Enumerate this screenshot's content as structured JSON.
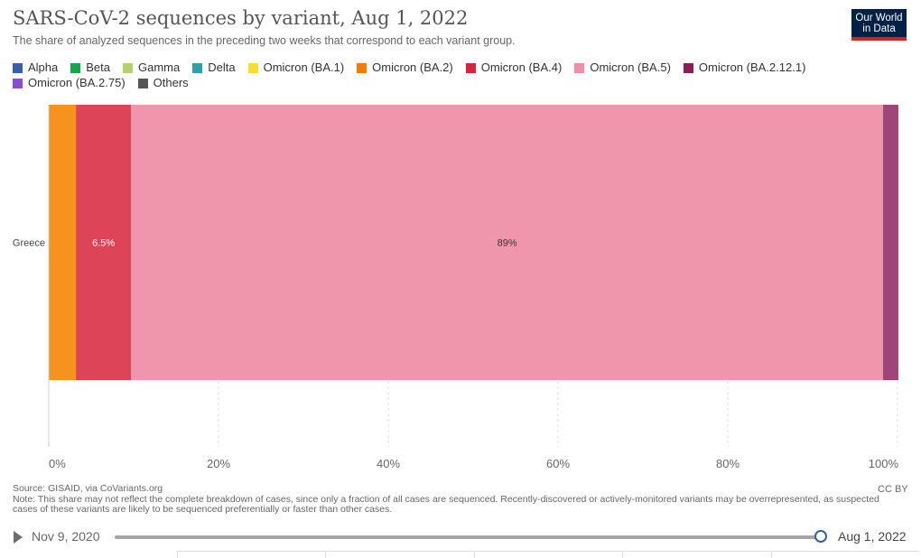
{
  "header": {
    "title": "SARS-CoV-2 sequences by variant, Aug 1, 2022",
    "subtitle": "The share of analyzed sequences in the preceding two weeks that correspond to each variant group.",
    "logo_line1": "Our World",
    "logo_line2": "in Data"
  },
  "legend": [
    {
      "label": "Alpha",
      "color": "#3360a9"
    },
    {
      "label": "Beta",
      "color": "#18a64a"
    },
    {
      "label": "Gamma",
      "color": "#b5d16b"
    },
    {
      "label": "Delta",
      "color": "#2ea0a8"
    },
    {
      "label": "Omicron (BA.1)",
      "color": "#fadb30"
    },
    {
      "label": "Omicron (BA.2)",
      "color": "#f47a00"
    },
    {
      "label": "Omicron (BA.4)",
      "color": "#d7253b"
    },
    {
      "label": "Omicron (BA.5)",
      "color": "#ee8fa3"
    },
    {
      "label": "Omicron (BA.2.12.1)",
      "color": "#8d1d55"
    },
    {
      "label": "Omicron (BA.2.75)",
      "color": "#8e4cd6"
    },
    {
      "label": "Others",
      "color": "#555555"
    }
  ],
  "chart_data": {
    "type": "bar",
    "orientation": "horizontal",
    "stacked": true,
    "categories": [
      "Greece"
    ],
    "series": [
      {
        "name": "Omicron (BA.2)",
        "color": "#f6931f",
        "values": [
          3.2
        ]
      },
      {
        "name": "Omicron (BA.4)",
        "color": "#dd4457",
        "values": [
          6.5
        ],
        "label": "6.5%"
      },
      {
        "name": "Omicron (BA.5)",
        "color": "#f096ac",
        "values": [
          88.6
        ],
        "label": "89%"
      },
      {
        "name": "Omicron (BA.2.12.1)",
        "color": "#a0457a",
        "values": [
          1.8
        ]
      }
    ],
    "xlim": [
      0,
      100
    ],
    "x_ticks": [
      0,
      20,
      40,
      60,
      80,
      100
    ],
    "x_tick_labels": [
      "0%",
      "20%",
      "40%",
      "60%",
      "80%",
      "100%"
    ],
    "grid": "vertical-dashed"
  },
  "footer": {
    "source": "Source: GISAID, via CoVariants.org",
    "note": "Note: This share may not reflect the complete breakdown of cases, since only a fraction of all cases are sequenced. Recently-discovered or actively-monitored variants may be overrepresented, as suspected cases of these variants are likely to be sequenced preferentially or faster than other cases.",
    "license": "CC BY"
  },
  "timeline": {
    "start_label": "Nov 9, 2020",
    "end_label": "Aug 1, 2022",
    "progress": 1.0
  }
}
